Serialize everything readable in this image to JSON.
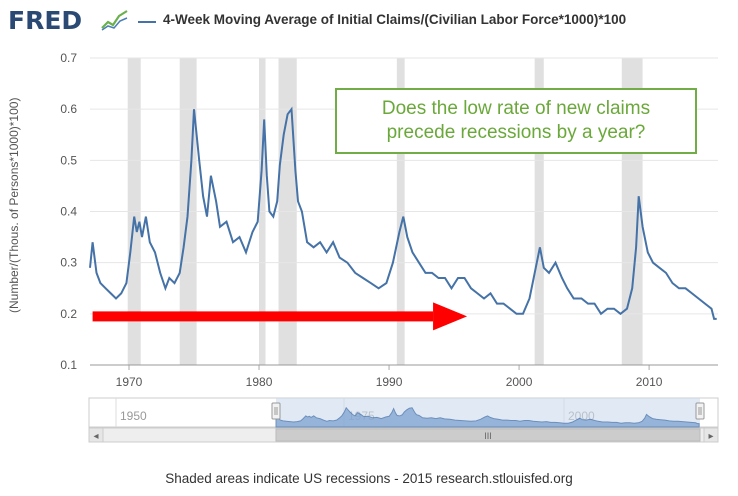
{
  "header": {
    "logo_text": "FRED",
    "logo_icon": "chart-line-icon",
    "title": "4-Week Moving Average of Initial Claims/(Civilian Labor Force*1000)*100"
  },
  "callout": {
    "line1": "Does the low rate of new claims",
    "line2": "precede recessions by a year?"
  },
  "navigator": {
    "tick_labels": [
      "1950",
      "1975",
      "2000"
    ],
    "scroll_glyph": "III",
    "left_arrow": "◂",
    "right_arrow": "▸"
  },
  "footer": {
    "text": "Shaded areas indicate US recessions - 2015 research.stlouisfed.org"
  },
  "colors": {
    "series": "#4572a7",
    "recession": "#e0e0e0",
    "arrow": "#ff0000",
    "callout_border": "#70ad47",
    "callout_text": "#6aa83a"
  },
  "chart_data": {
    "type": "line",
    "title": "4-Week Moving Average of Initial Claims/(Civilian Labor Force*1000)*100",
    "xlabel": "",
    "ylabel": "(Number/(Thous. of Persons*1000)*100)",
    "xlim": [
      1967.0,
      2015.3
    ],
    "ylim": [
      0.1,
      0.7
    ],
    "x_ticks": [
      1970,
      1980,
      1990,
      2000,
      2010
    ],
    "y_ticks": [
      0.1,
      0.2,
      0.3,
      0.4,
      0.5,
      0.6,
      0.7
    ],
    "grid": "horizontal",
    "recessions": [
      [
        1969.9,
        1970.9
      ],
      [
        1973.9,
        1975.2
      ],
      [
        1980.0,
        1980.5
      ],
      [
        1981.5,
        1982.9
      ],
      [
        1990.6,
        1991.2
      ],
      [
        2001.2,
        2001.9
      ],
      [
        2007.9,
        2009.5
      ]
    ],
    "series": [
      {
        "name": "4-Week Moving Average of Initial Claims/(Civilian Labor Force*1000)*100",
        "x": [
          1967.0,
          1967.2,
          1967.5,
          1967.8,
          1968.2,
          1968.6,
          1969.0,
          1969.4,
          1969.8,
          1970.1,
          1970.4,
          1970.6,
          1970.8,
          1971.0,
          1971.3,
          1971.6,
          1972.0,
          1972.4,
          1972.8,
          1973.1,
          1973.5,
          1973.9,
          1974.2,
          1974.5,
          1974.8,
          1975.0,
          1975.2,
          1975.4,
          1975.7,
          1976.0,
          1976.3,
          1976.7,
          1977.0,
          1977.5,
          1978.0,
          1978.5,
          1979.0,
          1979.5,
          1979.9,
          1980.2,
          1980.4,
          1980.6,
          1980.8,
          1981.1,
          1981.4,
          1981.6,
          1981.9,
          1982.2,
          1982.5,
          1982.8,
          1983.0,
          1983.3,
          1983.7,
          1984.2,
          1984.7,
          1985.2,
          1985.7,
          1986.2,
          1986.8,
          1987.4,
          1988.0,
          1988.6,
          1989.2,
          1989.8,
          1990.3,
          1990.8,
          1991.1,
          1991.4,
          1991.8,
          1992.3,
          1992.8,
          1993.3,
          1993.8,
          1994.3,
          1994.8,
          1995.3,
          1995.8,
          1996.3,
          1996.8,
          1997.3,
          1997.8,
          1998.3,
          1998.8,
          1999.3,
          1999.8,
          2000.3,
          2000.8,
          2001.2,
          2001.6,
          2001.9,
          2002.3,
          2002.8,
          2003.3,
          2003.7,
          2004.2,
          2004.8,
          2005.3,
          2005.8,
          2006.3,
          2006.8,
          2007.3,
          2007.8,
          2008.3,
          2008.7,
          2009.0,
          2009.2,
          2009.5,
          2009.9,
          2010.3,
          2010.8,
          2011.3,
          2011.8,
          2012.3,
          2012.8,
          2013.3,
          2013.8,
          2014.3,
          2014.8,
          2015.0,
          2015.2
        ],
        "values": [
          0.29,
          0.34,
          0.28,
          0.26,
          0.25,
          0.24,
          0.23,
          0.24,
          0.26,
          0.32,
          0.39,
          0.36,
          0.38,
          0.35,
          0.39,
          0.34,
          0.32,
          0.28,
          0.25,
          0.27,
          0.26,
          0.28,
          0.33,
          0.39,
          0.5,
          0.6,
          0.55,
          0.5,
          0.43,
          0.39,
          0.47,
          0.42,
          0.37,
          0.38,
          0.34,
          0.35,
          0.32,
          0.36,
          0.38,
          0.48,
          0.58,
          0.47,
          0.4,
          0.39,
          0.42,
          0.49,
          0.55,
          0.59,
          0.6,
          0.48,
          0.42,
          0.4,
          0.34,
          0.33,
          0.34,
          0.32,
          0.34,
          0.31,
          0.3,
          0.28,
          0.27,
          0.26,
          0.25,
          0.26,
          0.3,
          0.36,
          0.39,
          0.35,
          0.32,
          0.3,
          0.28,
          0.28,
          0.27,
          0.27,
          0.25,
          0.27,
          0.27,
          0.25,
          0.24,
          0.23,
          0.24,
          0.22,
          0.22,
          0.21,
          0.2,
          0.2,
          0.23,
          0.28,
          0.33,
          0.29,
          0.28,
          0.3,
          0.27,
          0.25,
          0.23,
          0.23,
          0.22,
          0.22,
          0.2,
          0.21,
          0.21,
          0.2,
          0.21,
          0.25,
          0.33,
          0.43,
          0.37,
          0.32,
          0.3,
          0.29,
          0.28,
          0.26,
          0.25,
          0.25,
          0.24,
          0.23,
          0.22,
          0.21,
          0.19,
          0.19
        ]
      }
    ],
    "annotations": [
      {
        "type": "arrow",
        "from_year": 1967.2,
        "to_year": 1996.0,
        "at_value": 0.195,
        "color": "red"
      },
      {
        "type": "callout",
        "text": "Does the low rate of new claims precede recessions by a year?"
      }
    ]
  }
}
